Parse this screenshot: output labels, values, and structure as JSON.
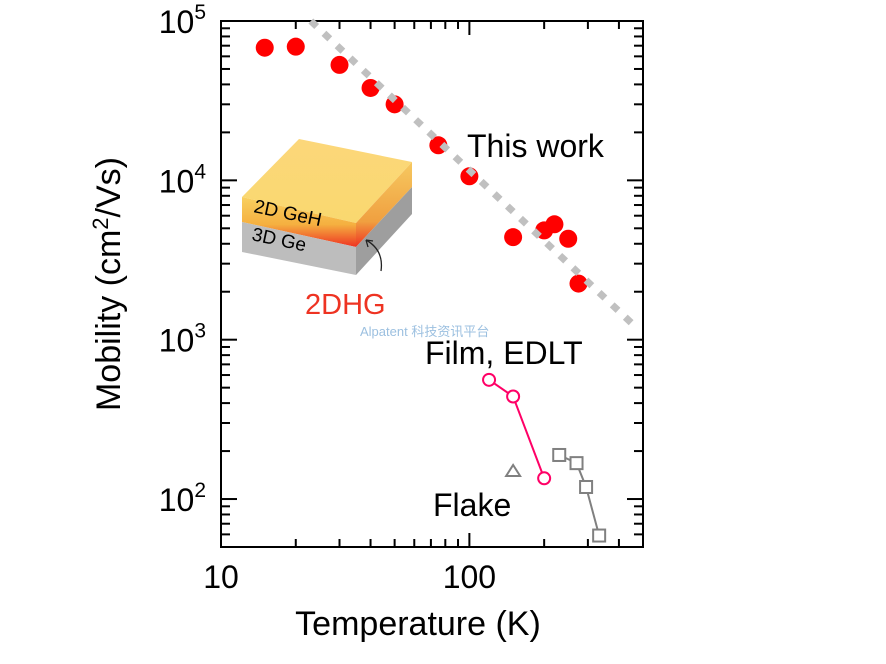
{
  "chart_data": {
    "type": "scatter",
    "xlabel": "Temperature (K)",
    "ylabel": "Mobility (cm²/Vs)",
    "ylabel_parts": {
      "pre": "Mobility (cm",
      "sup": "2",
      "post": "/Vs)"
    },
    "xscale": "log",
    "yscale": "log",
    "xlim": [
      10,
      500
    ],
    "ylim": [
      50,
      100000
    ],
    "x_tick_labels": [
      "10",
      "100"
    ],
    "x_ticks": [
      10,
      100
    ],
    "y_ticks": [
      100,
      1000,
      10000,
      100000
    ],
    "y_tick_labels": [
      {
        "base": "10",
        "exp": "2"
      },
      {
        "base": "10",
        "exp": "3"
      },
      {
        "base": "10",
        "exp": "4"
      },
      {
        "base": "10",
        "exp": "5"
      }
    ],
    "grid": false,
    "series": [
      {
        "name": "This work",
        "marker": "filled-circle",
        "color": "#ff0000",
        "line": false,
        "x": [
          15,
          20,
          30,
          40,
          50,
          75,
          100,
          150,
          200,
          220,
          250,
          275
        ],
        "y": [
          68000,
          69000,
          53000,
          38000,
          30000,
          16600,
          10600,
          4400,
          4850,
          5300,
          4300,
          2250
        ]
      },
      {
        "name": "",
        "marker": "none",
        "color": "#c0c0c0",
        "line": "dotted",
        "x": [
          23,
          465
        ],
        "y": [
          100000,
          1210
        ]
      },
      {
        "name": "Film, EDLT",
        "marker": "open-circle",
        "color": "#ff0066",
        "line": true,
        "x": [
          120,
          150,
          200
        ],
        "y": [
          560,
          440,
          135
        ]
      },
      {
        "name": "Flake",
        "marker": "open-triangle",
        "color": "#808080",
        "line": false,
        "x": [
          150
        ],
        "y": [
          150
        ]
      },
      {
        "name": "",
        "marker": "open-square",
        "color": "#808080",
        "line": true,
        "x": [
          230,
          270,
          295,
          333
        ],
        "y": [
          189,
          168,
          119,
          59
        ]
      }
    ],
    "annotations": {
      "this_work": "This work",
      "film": "Film, EDLT",
      "flake": "Flake"
    },
    "inset": {
      "top_layer": "2D GeH",
      "bottom_layer": "3D Ge",
      "interface_label": "2DHG",
      "interface_color": "#ee3322"
    }
  },
  "watermark": "Alpatent  科技资讯平台"
}
